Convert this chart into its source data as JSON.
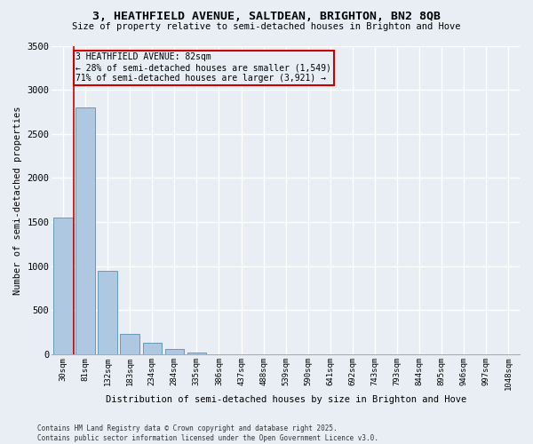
{
  "title": "3, HEATHFIELD AVENUE, SALTDEAN, BRIGHTON, BN2 8QB",
  "subtitle": "Size of property relative to semi-detached houses in Brighton and Hove",
  "xlabel": "Distribution of semi-detached houses by size in Brighton and Hove",
  "ylabel": "Number of semi-detached properties",
  "footer": "Contains HM Land Registry data © Crown copyright and database right 2025.\nContains public sector information licensed under the Open Government Licence v3.0.",
  "bin_labels": [
    "30sqm",
    "81sqm",
    "132sqm",
    "183sqm",
    "234sqm",
    "284sqm",
    "335sqm",
    "386sqm",
    "437sqm",
    "488sqm",
    "539sqm",
    "590sqm",
    "641sqm",
    "692sqm",
    "743sqm",
    "793sqm",
    "844sqm",
    "895sqm",
    "946sqm",
    "997sqm",
    "1048sqm"
  ],
  "bar_values": [
    1549,
    2800,
    950,
    230,
    130,
    60,
    25,
    0,
    0,
    0,
    0,
    0,
    0,
    0,
    0,
    0,
    0,
    0,
    0,
    0,
    0
  ],
  "bar_color": "#adc8e0",
  "bar_edge_color": "#6699bb",
  "annotation_title": "3 HEATHFIELD AVENUE: 82sqm",
  "annotation_line1": "← 28% of semi-detached houses are smaller (1,549)",
  "annotation_line2": "71% of semi-detached houses are larger (3,921) →",
  "annotation_box_color": "#cc0000",
  "vertical_line_color": "#cc0000",
  "ylim": [
    0,
    3500
  ],
  "yticks": [
    0,
    500,
    1000,
    1500,
    2000,
    2500,
    3000,
    3500
  ],
  "background_color": "#e8eef4",
  "grid_color": "#ffffff"
}
